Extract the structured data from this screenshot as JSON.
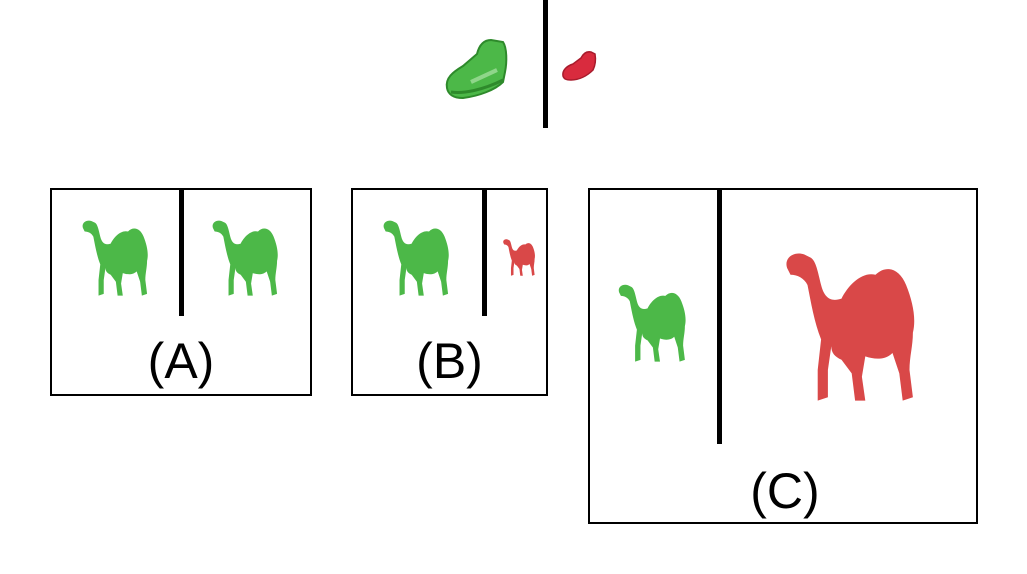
{
  "colors": {
    "green": "#4cb848",
    "green_dark": "#2e8a2b",
    "red": "#d94848",
    "red_dark": "#b81e2e",
    "line": "#000000"
  },
  "reference": {
    "left_icon": "green-shoe-icon",
    "right_icon": "red-shoe-icon"
  },
  "panels": [
    {
      "label": "(A)",
      "left_icon": "green-camel-icon",
      "right_icon": "green-camel-icon"
    },
    {
      "label": "(B)",
      "left_icon": "green-camel-icon",
      "right_icon": "red-camel-small-icon"
    },
    {
      "label": "(C)",
      "left_icon": "green-camel-icon",
      "right_icon": "red-camel-large-icon"
    }
  ]
}
